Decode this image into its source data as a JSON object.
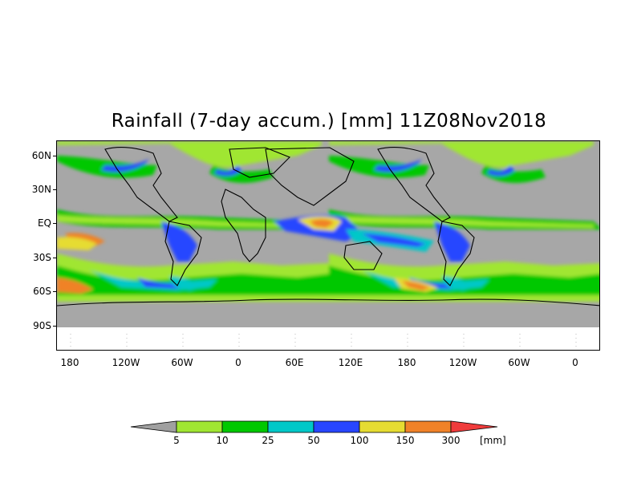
{
  "title": "Rainfall (7-day accum.) [mm] 11Z08Nov2018",
  "lat_labels": [
    "60N",
    "30N",
    "EQ",
    "30S",
    "60S",
    "90S"
  ],
  "lon_labels": [
    "180",
    "120W",
    "60W",
    "0",
    "60E",
    "120E",
    "180",
    "120W",
    "60W",
    "0"
  ],
  "colorbar": {
    "thresholds": [
      "5",
      "10",
      "25",
      "50",
      "100",
      "150",
      "300"
    ],
    "unit": "[mm]",
    "colors": [
      "#a0a0a0",
      "#a0e632",
      "#00c800",
      "#00c8c8",
      "#2846ff",
      "#e6dc32",
      "#f08228",
      "#f03c3c"
    ]
  },
  "colors": {
    "no_data": "#a7a7a7",
    "light_rain": "#a0e632",
    "green": "#00c800",
    "cyan": "#00c8c8",
    "blue": "#2846ff",
    "yellow": "#e6dc32",
    "orange": "#f08228"
  }
}
